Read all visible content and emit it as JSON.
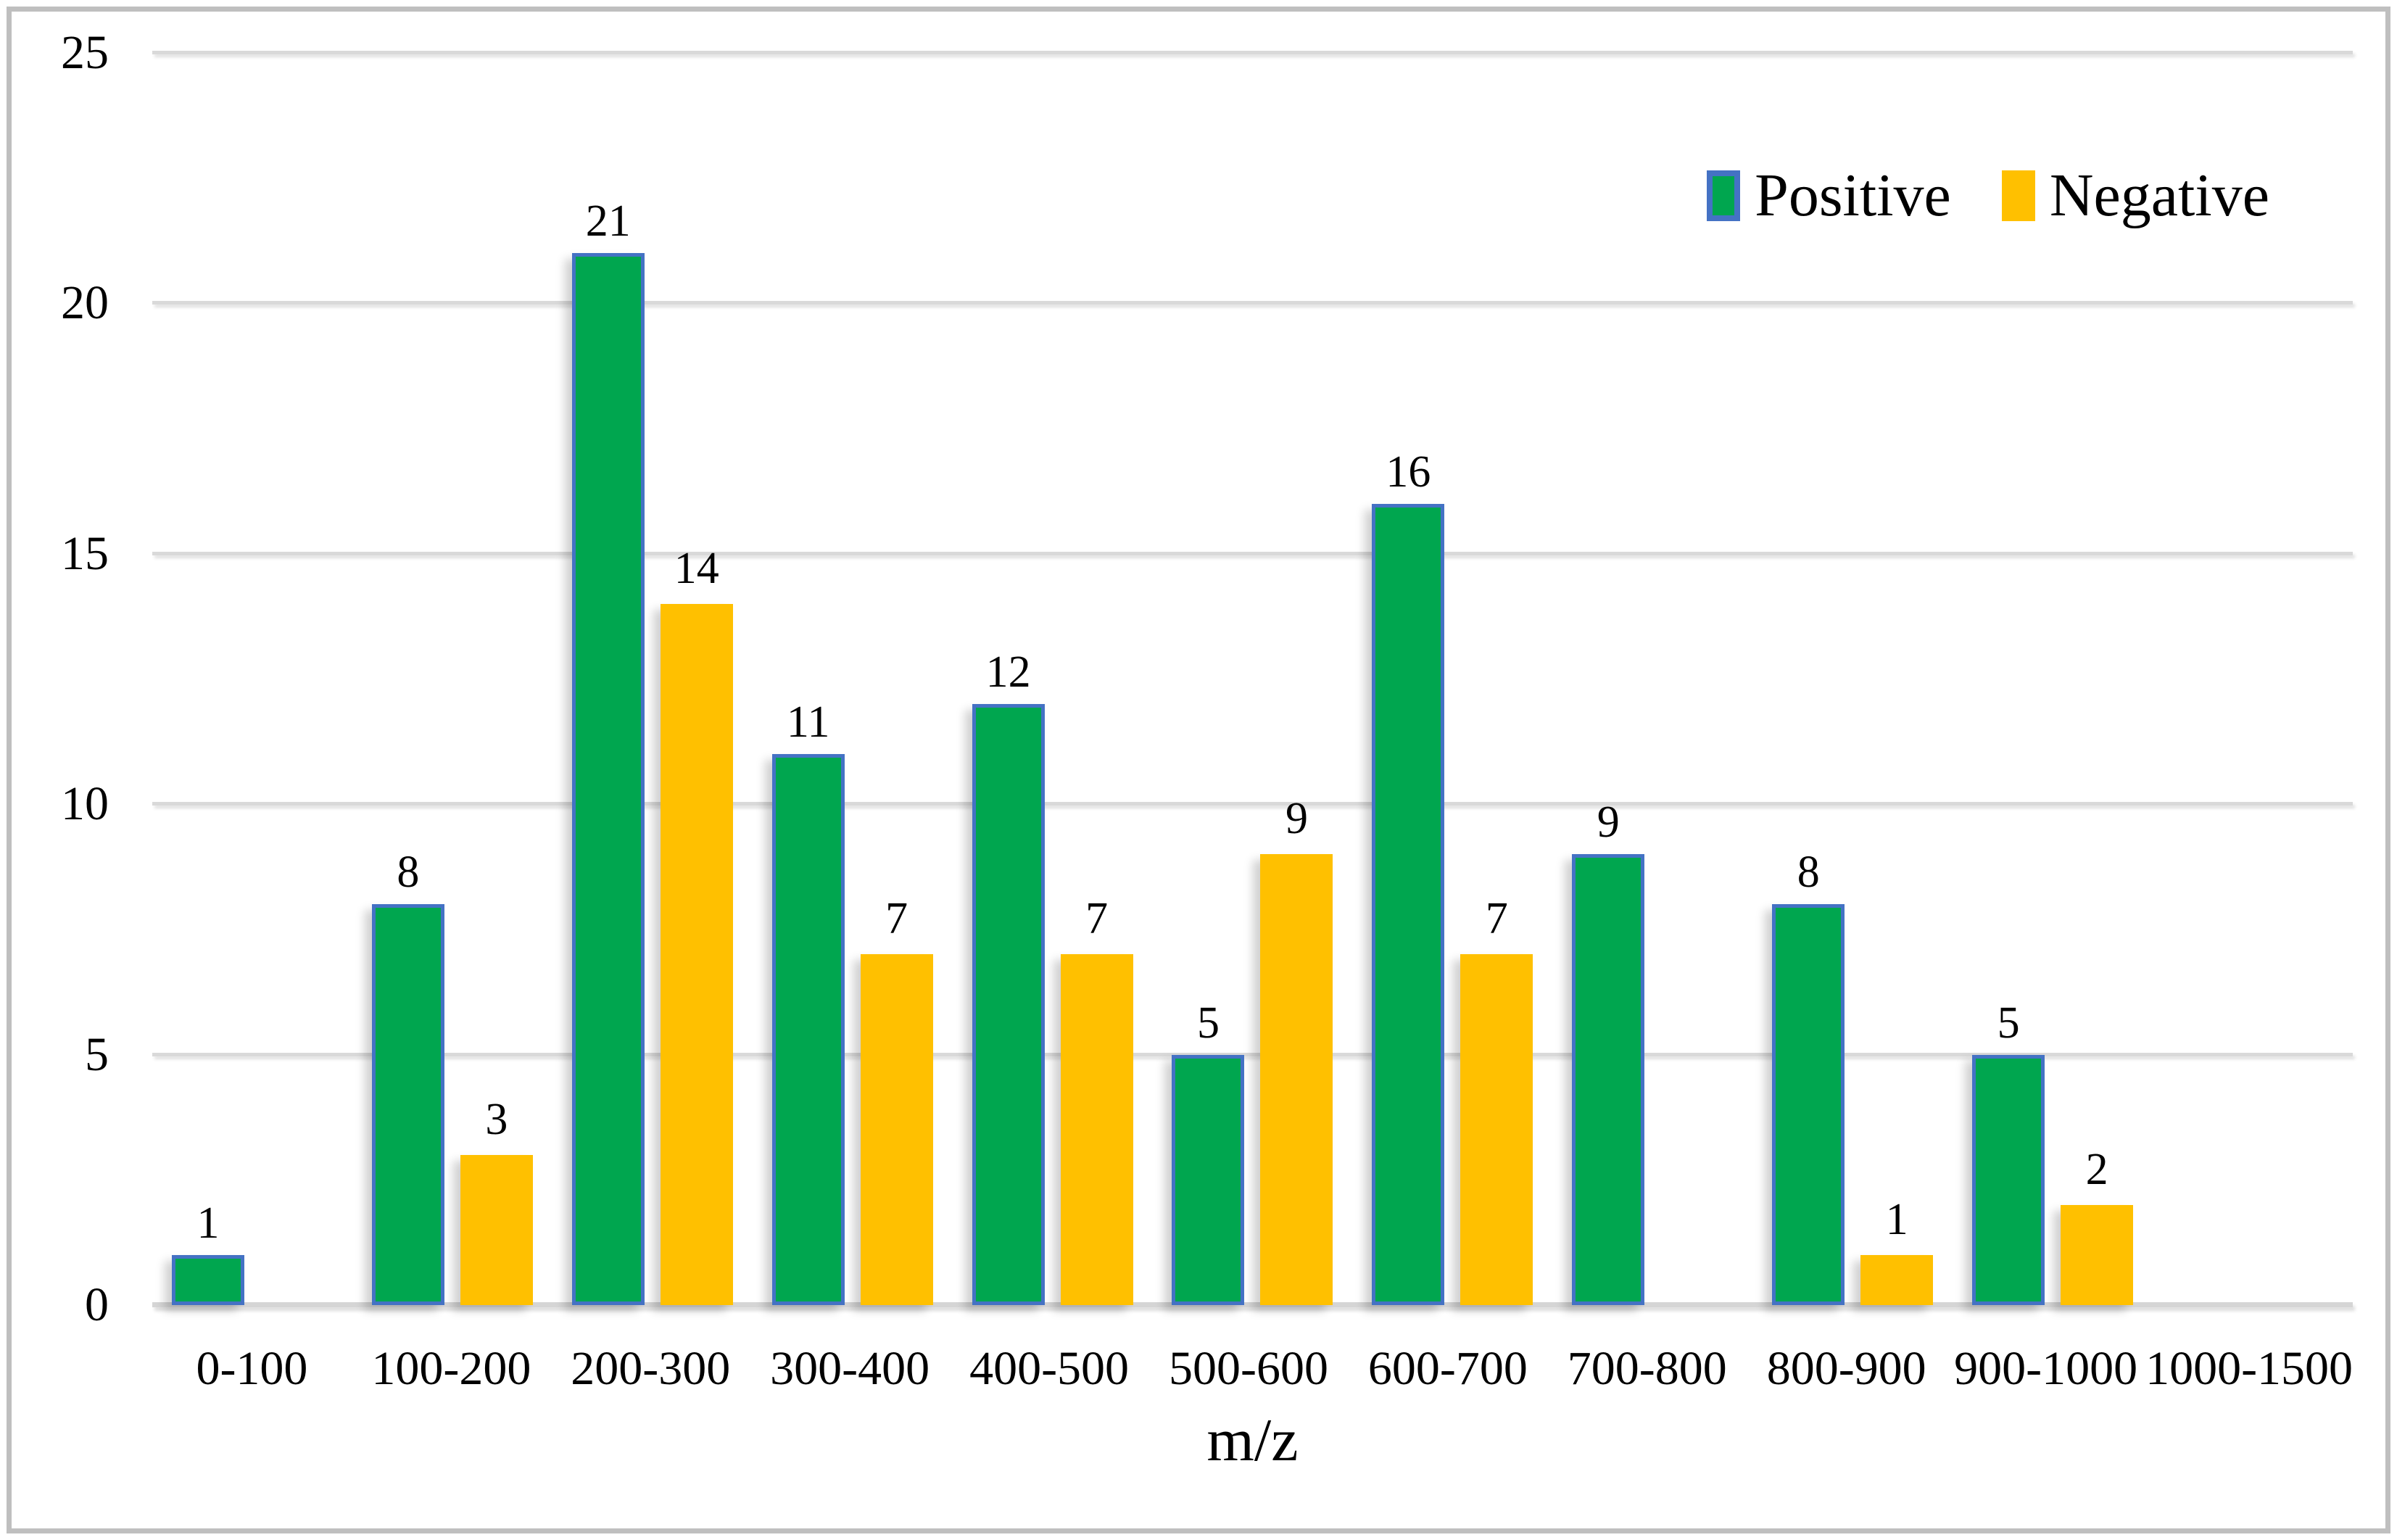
{
  "colors": {
    "positive_fill": "#00A64F",
    "positive_border": "#4472C4",
    "negative_fill": "#FFC000",
    "gridline": "#D9D9D9",
    "axis_line": "#D5D5D5",
    "frame_border": "#BFBFBF",
    "text": "#000000",
    "background": "#FFFFFF"
  },
  "chart_data": {
    "type": "bar",
    "title": "",
    "xlabel": "m/z",
    "ylabel": "",
    "ylim": [
      0,
      25
    ],
    "yticks": [
      0,
      5,
      10,
      15,
      20,
      25
    ],
    "grid": true,
    "data_labels": true,
    "legend_position": "top-right-inside",
    "categories": [
      "0-100",
      "100-200",
      "200-300",
      "300-400",
      "400-500",
      "500-600",
      "600-700",
      "700-800",
      "800-900",
      "900-1000",
      "1000-1500"
    ],
    "series": [
      {
        "name": "Positive",
        "color": "#00A64F",
        "border_color": "#4472C4",
        "values": [
          1,
          8,
          21,
          11,
          12,
          5,
          16,
          9,
          8,
          5,
          0
        ]
      },
      {
        "name": "Negative",
        "color": "#FFC000",
        "border_color": null,
        "values": [
          0,
          3,
          14,
          7,
          7,
          9,
          7,
          0,
          1,
          2,
          0
        ]
      }
    ]
  }
}
